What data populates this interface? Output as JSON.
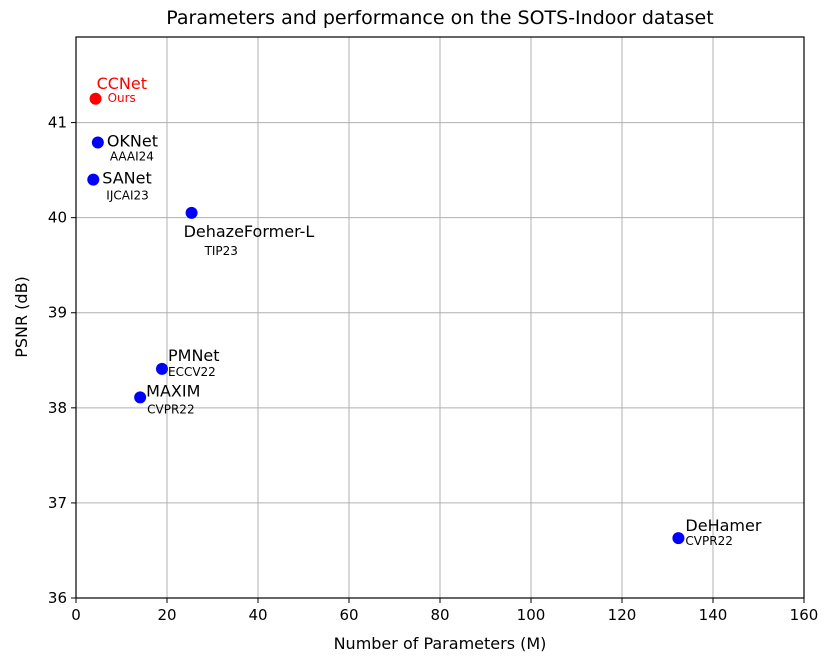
{
  "chart_data": {
    "type": "scatter",
    "title": "Parameters and performance on the SOTS-Indoor dataset",
    "xlabel": "Number of Parameters (M)",
    "ylabel": "PSNR  (dB)",
    "xlim": [
      0,
      160
    ],
    "ylim": [
      36,
      41.9
    ],
    "xticks": [
      0,
      20,
      40,
      60,
      80,
      100,
      120,
      140,
      160
    ],
    "yticks": [
      36,
      37,
      38,
      39,
      40,
      41
    ],
    "grid": true,
    "points": [
      {
        "label": "CCNet",
        "venue": "Ours",
        "x": 4.3,
        "y": 41.25,
        "color": "#ff0000"
      },
      {
        "label": "OKNet",
        "venue": "AAAI24",
        "x": 4.8,
        "y": 40.79,
        "color": "#0000ff"
      },
      {
        "label": "SANet",
        "venue": "IJCAI23",
        "x": 3.8,
        "y": 40.4,
        "color": "#0000ff"
      },
      {
        "label": "DehazeFormer-L",
        "venue": "TIP23",
        "x": 25.4,
        "y": 40.05,
        "color": "#0000ff"
      },
      {
        "label": "PMNet",
        "venue": "ECCV22",
        "x": 18.9,
        "y": 38.41,
        "color": "#0000ff"
      },
      {
        "label": "MAXIM",
        "venue": "CVPR22",
        "x": 14.1,
        "y": 38.11,
        "color": "#0000ff"
      },
      {
        "label": "DeHamer",
        "venue": "CVPR22",
        "x": 132.4,
        "y": 36.63,
        "color": "#0000ff"
      }
    ]
  }
}
